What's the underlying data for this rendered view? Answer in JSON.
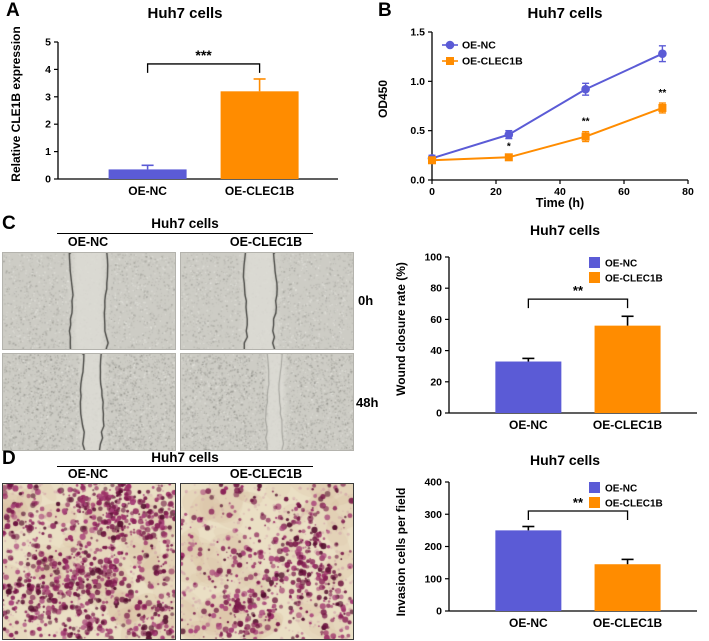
{
  "panels": {
    "A": "A",
    "B": "B",
    "C": "C",
    "D": "D"
  },
  "colors": {
    "oe_nc": "#5b5bd6",
    "oe_clec1b": "#ff8c00"
  },
  "panelC": {
    "header": "Huh7 cells",
    "col_left": "OE-NC",
    "col_right": "OE-CLEC1B",
    "row_top": "0h",
    "row_bottom": "48h"
  },
  "panelD": {
    "header": "Huh7 cells",
    "col_left": "OE-NC",
    "col_right": "OE-CLEC1B"
  },
  "chart_data": [
    {
      "panel": "A",
      "type": "bar",
      "title": "Huh7 cells",
      "ylabel": "Relative CLE1B expression",
      "xlabel": "",
      "categories": [
        "OE-NC",
        "OE-CLEC1B"
      ],
      "values": [
        0.35,
        3.2
      ],
      "errors": [
        0.15,
        0.45
      ],
      "yticks": [
        "0",
        "1",
        "2",
        "3",
        "4",
        "5"
      ],
      "ylim": [
        0,
        5
      ],
      "bar_colors": [
        "#5b5bd6",
        "#ff8c00"
      ],
      "err_match": true,
      "significance": {
        "label": "***",
        "y": 4.2
      }
    },
    {
      "panel": "B",
      "type": "line",
      "title": "Huh7 cells",
      "xlabel": "Time (h)",
      "ylabel": "OD450",
      "x": [
        0,
        24,
        48,
        72
      ],
      "xticks": [
        "0",
        "20",
        "40",
        "60",
        "80"
      ],
      "xlim": [
        0,
        80
      ],
      "yticks": [
        "0.0",
        "0.5",
        "1.0",
        "1.5"
      ],
      "ylim": [
        0,
        1.5
      ],
      "series": [
        {
          "name": "OE-NC",
          "color": "#5b5bd6",
          "marker": "circle",
          "values": [
            0.22,
            0.46,
            0.92,
            1.28
          ],
          "errors": [
            0.03,
            0.04,
            0.06,
            0.08
          ]
        },
        {
          "name": "OE-CLEC1B",
          "color": "#ff8c00",
          "marker": "square",
          "values": [
            0.2,
            0.23,
            0.44,
            0.73
          ],
          "errors": [
            0.02,
            0.03,
            0.05,
            0.05
          ]
        }
      ],
      "annotations": [
        {
          "text": "*",
          "x": 24,
          "y": 0.31
        },
        {
          "text": "**",
          "x": 48,
          "y": 0.56
        },
        {
          "text": "**",
          "x": 72,
          "y": 0.85
        }
      ],
      "legend_position": "top-left"
    },
    {
      "panel": "C",
      "type": "bar",
      "title": "Huh7 cells",
      "ylabel": "Wound closure rate (%)",
      "xlabel": "",
      "categories": [
        "OE-NC",
        "OE-CLEC1B"
      ],
      "values": [
        33,
        56
      ],
      "errors": [
        2,
        6
      ],
      "yticks": [
        "0",
        "20",
        "40",
        "60",
        "80",
        "100"
      ],
      "ylim": [
        0,
        100
      ],
      "bar_colors": [
        "#5b5bd6",
        "#ff8c00"
      ],
      "legend": [
        "OE-NC",
        "OE-CLEC1B"
      ],
      "legend_position": "top-right",
      "significance": {
        "label": "**",
        "y": 73
      }
    },
    {
      "panel": "D",
      "type": "bar",
      "title": "Huh7 cells",
      "ylabel": "Invasion cells per field",
      "xlabel": "",
      "categories": [
        "OE-NC",
        "OE-CLEC1B"
      ],
      "values": [
        250,
        145
      ],
      "errors": [
        12,
        15
      ],
      "yticks": [
        "0",
        "100",
        "200",
        "300",
        "400"
      ],
      "ylim": [
        0,
        400
      ],
      "bar_colors": [
        "#5b5bd6",
        "#ff8c00"
      ],
      "legend": [
        "OE-NC",
        "OE-CLEC1B"
      ],
      "legend_position": "top-right",
      "significance": {
        "label": "**",
        "y": 310
      }
    }
  ]
}
